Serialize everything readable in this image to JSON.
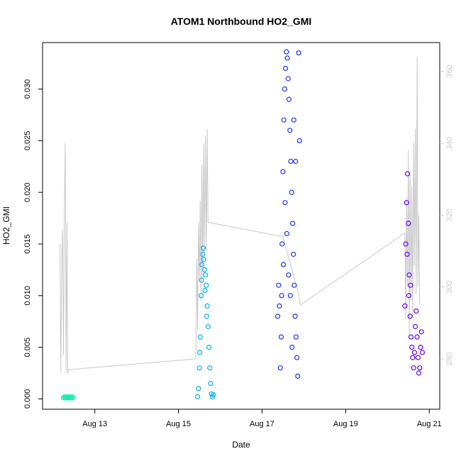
{
  "chart_data": {
    "type": "scatter",
    "title": "ATOM1 Northbound HO2_GMI",
    "xlabel": "Date",
    "ylabel": "HO2_GMI",
    "x_is_date": true,
    "xlim": [
      "2016-08-11 18:00",
      "2016-08-21 06:00"
    ],
    "ylim": [
      -0.001,
      0.0345
    ],
    "x_ticks": [
      {
        "date": "2016-08-13",
        "label": "Aug 13"
      },
      {
        "date": "2016-08-15",
        "label": "Aug 15"
      },
      {
        "date": "2016-08-17",
        "label": "Aug 17"
      },
      {
        "date": "2016-08-19",
        "label": "Aug 19"
      },
      {
        "date": "2016-08-21",
        "label": "Aug 21"
      }
    ],
    "y_ticks": [
      0.0,
      0.005,
      0.01,
      0.015,
      0.02,
      0.025,
      0.03
    ],
    "y_tick_labels": [
      "0.000",
      "0.005",
      "0.010",
      "0.015",
      "0.020",
      "0.025",
      "0.030"
    ],
    "y2_ticks": [
      280,
      300,
      320,
      340,
      360
    ],
    "y2_tick_labels": [
      "280",
      "300",
      "320",
      "340",
      "360"
    ],
    "y2lim": [
      266,
      368
    ],
    "grid": false,
    "series": [
      {
        "color": "#1de9b6",
        "marker": "circle-open",
        "points": [
          [
            "2016-08-12 06:00",
            0.0001
          ],
          [
            "2016-08-12 06:30",
            0.0002
          ],
          [
            "2016-08-12 07:00",
            0.0001
          ],
          [
            "2016-08-12 07:30",
            0.0001
          ],
          [
            "2016-08-12 08:00",
            0.0002
          ],
          [
            "2016-08-12 08:30",
            0.0001
          ],
          [
            "2016-08-12 09:00",
            0.0001
          ],
          [
            "2016-08-12 09:30",
            0.0002
          ],
          [
            "2016-08-12 10:00",
            0.0001
          ],
          [
            "2016-08-12 10:30",
            0.0001
          ],
          [
            "2016-08-12 11:00",
            0.0002
          ],
          [
            "2016-08-12 11:30",
            0.0001
          ]
        ]
      },
      {
        "color": "#00b0f0",
        "marker": "circle-open",
        "points": [
          [
            "2016-08-15 11:00",
            0.0002
          ],
          [
            "2016-08-15 11:30",
            0.001
          ],
          [
            "2016-08-15 12:00",
            0.003
          ],
          [
            "2016-08-15 12:30",
            0.006
          ],
          [
            "2016-08-15 13:00",
            0.01
          ],
          [
            "2016-08-15 13:30",
            0.013
          ],
          [
            "2016-08-15 14:00",
            0.014
          ],
          [
            "2016-08-15 14:30",
            0.0135
          ],
          [
            "2016-08-15 15:00",
            0.0125
          ],
          [
            "2016-08-15 15:30",
            0.012
          ],
          [
            "2016-08-15 16:00",
            0.011
          ],
          [
            "2016-08-15 16:30",
            0.009
          ],
          [
            "2016-08-15 17:00",
            0.007
          ],
          [
            "2016-08-15 17:30",
            0.005
          ],
          [
            "2016-08-15 18:00",
            0.003
          ],
          [
            "2016-08-15 18:30",
            0.0015
          ],
          [
            "2016-08-15 19:00",
            0.0005
          ],
          [
            "2016-08-15 19:30",
            0.0002
          ],
          [
            "2016-08-15 20:00",
            0.0004
          ],
          [
            "2016-08-15 14:15",
            0.0146
          ],
          [
            "2016-08-15 15:15",
            0.0105
          ],
          [
            "2016-08-15 16:15",
            0.008
          ],
          [
            "2016-08-15 12:15",
            0.0045
          ],
          [
            "2016-08-15 13:15",
            0.0115
          ]
        ]
      },
      {
        "color": "#1a35f5",
        "marker": "circle-open",
        "points": [
          [
            "2016-08-17 09:00",
            0.008
          ],
          [
            "2016-08-17 09:30",
            0.011
          ],
          [
            "2016-08-17 10:00",
            0.009
          ],
          [
            "2016-08-17 10:30",
            0.003
          ],
          [
            "2016-08-17 11:00",
            0.006
          ],
          [
            "2016-08-17 11:30",
            0.015
          ],
          [
            "2016-08-17 12:00",
            0.022
          ],
          [
            "2016-08-17 12:30",
            0.027
          ],
          [
            "2016-08-17 13:00",
            0.03
          ],
          [
            "2016-08-17 13:30",
            0.032
          ],
          [
            "2016-08-17 14:00",
            0.0336
          ],
          [
            "2016-08-17 14:30",
            0.033
          ],
          [
            "2016-08-17 15:00",
            0.031
          ],
          [
            "2016-08-17 15:30",
            0.029
          ],
          [
            "2016-08-17 16:00",
            0.026
          ],
          [
            "2016-08-17 16:30",
            0.023
          ],
          [
            "2016-08-17 17:00",
            0.02
          ],
          [
            "2016-08-17 17:30",
            0.017
          ],
          [
            "2016-08-17 18:00",
            0.014
          ],
          [
            "2016-08-17 18:30",
            0.011
          ],
          [
            "2016-08-17 19:00",
            0.008
          ],
          [
            "2016-08-17 19:30",
            0.006
          ],
          [
            "2016-08-17 20:00",
            0.004
          ],
          [
            "2016-08-17 20:30",
            0.0022
          ],
          [
            "2016-08-17 21:00",
            0.0335
          ],
          [
            "2016-08-17 21:30",
            0.025
          ],
          [
            "2016-08-17 13:15",
            0.019
          ],
          [
            "2016-08-17 14:15",
            0.016
          ],
          [
            "2016-08-17 15:15",
            0.012
          ],
          [
            "2016-08-17 16:15",
            0.01
          ],
          [
            "2016-08-17 17:15",
            0.005
          ],
          [
            "2016-08-17 18:15",
            0.027
          ],
          [
            "2016-08-17 19:15",
            0.023
          ],
          [
            "2016-08-17 12:15",
            0.013
          ],
          [
            "2016-08-17 11:15",
            0.01
          ]
        ]
      },
      {
        "color": "#6a00f0",
        "marker": "circle-open",
        "points": [
          [
            "2016-08-20 10:00",
            0.009
          ],
          [
            "2016-08-20 10:30",
            0.015
          ],
          [
            "2016-08-20 11:00",
            0.019
          ],
          [
            "2016-08-20 11:30",
            0.0218
          ],
          [
            "2016-08-20 12:00",
            0.017
          ],
          [
            "2016-08-20 12:30",
            0.012
          ],
          [
            "2016-08-20 13:00",
            0.008
          ],
          [
            "2016-08-20 13:30",
            0.006
          ],
          [
            "2016-08-20 14:00",
            0.005
          ],
          [
            "2016-08-20 14:30",
            0.004
          ],
          [
            "2016-08-20 15:00",
            0.003
          ],
          [
            "2016-08-20 15:30",
            0.0045
          ],
          [
            "2016-08-20 16:00",
            0.007
          ],
          [
            "2016-08-20 16:30",
            0.0085
          ],
          [
            "2016-08-20 17:00",
            0.006
          ],
          [
            "2016-08-20 17:30",
            0.004
          ],
          [
            "2016-08-20 18:00",
            0.0025
          ],
          [
            "2016-08-20 18:30",
            0.003
          ],
          [
            "2016-08-20 19:00",
            0.005
          ],
          [
            "2016-08-20 19:30",
            0.0065
          ],
          [
            "2016-08-20 20:00",
            0.0045
          ],
          [
            "2016-08-20 11:15",
            0.014
          ],
          [
            "2016-08-20 12:15",
            0.01
          ],
          [
            "2016-08-20 13:15",
            0.011
          ]
        ]
      }
    ],
    "secondary_line": {
      "color": "#c8c8c8",
      "axis": "right",
      "points": [
        [
          "2016-08-12 04:00",
          312
        ],
        [
          "2016-08-12 04:30",
          276
        ],
        [
          "2016-08-12 05:00",
          308
        ],
        [
          "2016-08-12 05:30",
          316
        ],
        [
          "2016-08-12 06:00",
          281
        ],
        [
          "2016-08-12 06:30",
          322
        ],
        [
          "2016-08-12 07:00",
          340
        ],
        [
          "2016-08-12 07:30",
          276
        ],
        [
          "2016-08-12 08:00",
          318
        ],
        [
          "2016-08-12 08:30",
          276
        ],
        [
          "2016-08-12 09:00",
          277
        ],
        [
          "2016-08-15 10:00",
          280
        ],
        [
          "2016-08-15 10:30",
          308
        ],
        [
          "2016-08-15 11:00",
          288
        ],
        [
          "2016-08-15 11:30",
          318
        ],
        [
          "2016-08-15 12:00",
          302
        ],
        [
          "2016-08-15 12:30",
          324
        ],
        [
          "2016-08-15 13:00",
          296
        ],
        [
          "2016-08-15 13:30",
          334
        ],
        [
          "2016-08-15 14:00",
          302
        ],
        [
          "2016-08-15 14:30",
          340
        ],
        [
          "2016-08-15 15:00",
          310
        ],
        [
          "2016-08-15 15:30",
          342
        ],
        [
          "2016-08-15 16:00",
          310
        ],
        [
          "2016-08-15 16:30",
          344
        ],
        [
          "2016-08-15 17:00",
          318
        ],
        [
          "2016-08-17 12:00",
          314
        ],
        [
          "2016-08-17 21:00",
          298
        ],
        [
          "2016-08-17 22:00",
          295
        ],
        [
          "2016-08-20 10:00",
          315
        ],
        [
          "2016-08-20 10:30",
          291
        ],
        [
          "2016-08-20 11:00",
          325
        ],
        [
          "2016-08-20 11:30",
          300
        ],
        [
          "2016-08-20 12:00",
          338
        ],
        [
          "2016-08-20 12:30",
          286
        ],
        [
          "2016-08-20 13:00",
          332
        ],
        [
          "2016-08-20 13:30",
          296
        ],
        [
          "2016-08-20 14:00",
          328
        ],
        [
          "2016-08-20 14:30",
          292
        ],
        [
          "2016-08-20 15:00",
          340
        ],
        [
          "2016-08-20 15:30",
          306
        ],
        [
          "2016-08-20 16:00",
          344
        ],
        [
          "2016-08-20 16:30",
          298
        ],
        [
          "2016-08-20 17:00",
          364
        ],
        [
          "2016-08-20 17:30",
          300
        ],
        [
          "2016-08-20 18:00",
          320
        ],
        [
          "2016-08-20 18:30",
          295
        ]
      ]
    }
  }
}
